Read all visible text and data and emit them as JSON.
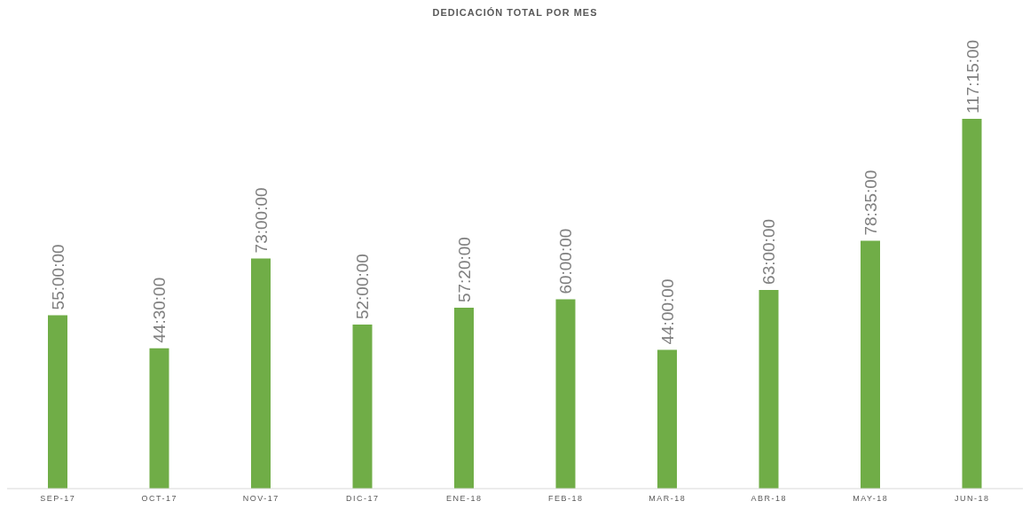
{
  "chart_data": {
    "type": "bar",
    "title": "DEDICACIÓN TOTAL POR MES",
    "categories": [
      "SEP-17",
      "OCT-17",
      "NOV-17",
      "DIC-17",
      "ENE-18",
      "FEB-18",
      "MAR-18",
      "ABR-18",
      "MAY-18",
      "JUN-18"
    ],
    "values": [
      55,
      44.5,
      73,
      52,
      57.333333333333336,
      60,
      44,
      63,
      78.58333333333333,
      117.25
    ],
    "value_labels": [
      "55:00:00",
      "44:30:00",
      "73:00:00",
      "52:00:00",
      "57:20:00",
      "60:00:00",
      "44:00:00",
      "63:00:00",
      "78:35:00",
      "117:15:00"
    ],
    "color": "#70ad47",
    "grid": false,
    "legend": false
  }
}
